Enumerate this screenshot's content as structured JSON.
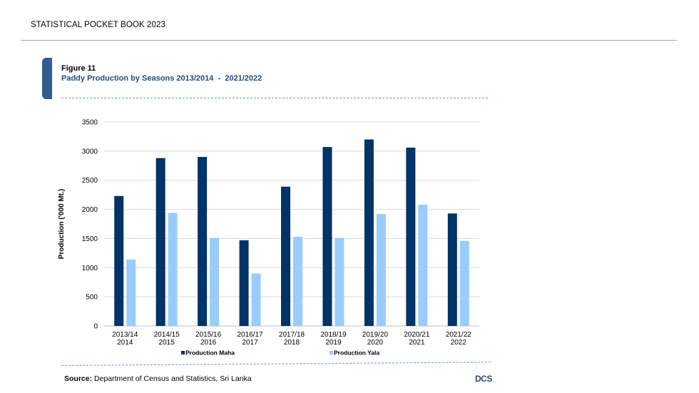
{
  "header": {
    "book_title": "STATISTICAL POCKET BOOK 2023"
  },
  "figure": {
    "label": "Figure 11",
    "title": "Paddy Production by Seasons 2013/2014  -  2021/2022"
  },
  "footer": {
    "source_label": "Source:",
    "source_text": "Department of Census and Statistics, Sri Lanka",
    "logo_text": "DCS"
  },
  "colors": {
    "maha": "#003366",
    "yala": "#99ccff",
    "accent": "#2f5f91",
    "title": "#1f4e79",
    "grid": "#d9d9d9"
  },
  "chart_data": {
    "type": "bar",
    "categories": [
      [
        "2013/14",
        "2014"
      ],
      [
        "2014/15",
        "2015"
      ],
      [
        "2015/16",
        "2016"
      ],
      [
        "2016/17",
        "2017"
      ],
      [
        "2017/18",
        "2018"
      ],
      [
        "2018/19",
        "2019"
      ],
      [
        "2019/20",
        "2020"
      ],
      [
        "2020/21",
        "2021"
      ],
      [
        "2021/22",
        "2022"
      ]
    ],
    "series": [
      {
        "name": "Production Maha",
        "color": "#003366",
        "values": [
          2230,
          2880,
          2900,
          1470,
          2390,
          3070,
          3200,
          3060,
          1930
        ]
      },
      {
        "name": "Production Yala",
        "color": "#99ccff",
        "values": [
          1140,
          1940,
          1510,
          900,
          1530,
          1510,
          1920,
          2080,
          1460
        ]
      }
    ],
    "ylabel": "Production ('000 Mt.)",
    "yticks": [
      0,
      500,
      1000,
      1500,
      2000,
      2500,
      3000,
      3500
    ],
    "ylim": [
      0,
      3500
    ],
    "grid": true,
    "legend_position": "bottom"
  }
}
